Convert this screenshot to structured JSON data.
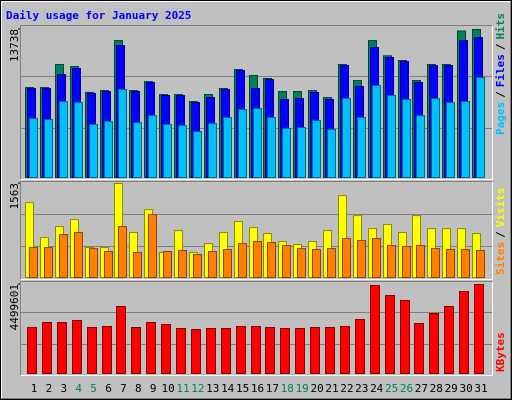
{
  "title": "Daily usage for January 2025",
  "legend_separator": "/",
  "chart_data": [
    {
      "type": "bar",
      "series": [
        {
          "name": "Hits",
          "color": "#00805c",
          "values": [
            8350,
            8350,
            10490,
            10300,
            7900,
            8070,
            12710,
            8070,
            8900,
            7700,
            7700,
            7050,
            7700,
            8260,
            10020,
            9470,
            9190,
            7980,
            7980,
            8070,
            7420,
            10490,
            9000,
            12710,
            11300,
            10860,
            9000,
            10490,
            10490,
            13600,
            13738
          ]
        },
        {
          "name": "Files",
          "color": "#0000ff",
          "values": [
            8260,
            8260,
            9560,
            10120,
            7800,
            7980,
            12250,
            7980,
            8820,
            7610,
            7610,
            6960,
            7420,
            8170,
            9930,
            8260,
            9090,
            7240,
            7330,
            7890,
            7240,
            10390,
            8450,
            12060,
            11140,
            10760,
            8820,
            10390,
            10390,
            12710,
            12990
          ]
        },
        {
          "name": "Pages",
          "color": "#00c0ff",
          "values": [
            5480,
            5380,
            7050,
            6960,
            4920,
            5200,
            8170,
            5100,
            5750,
            4920,
            4830,
            4270,
            5010,
            5570,
            6310,
            6400,
            5570,
            4550,
            4640,
            5290,
            4450,
            7330,
            5570,
            8540,
            7610,
            7240,
            5750,
            7330,
            6960,
            7050,
            9280
          ]
        }
      ],
      "ylim": [
        0,
        13738
      ],
      "yticks": [
        13738
      ]
    },
    {
      "type": "bar",
      "series": [
        {
          "name": "Visits",
          "color": "#ffff00",
          "values": [
            1245,
            664,
            847,
            963,
            498,
            498,
            1563,
            747,
            1129,
            415,
            780,
            415,
            564,
            747,
            930,
            830,
            730,
            598,
            548,
            598,
            780,
            1361,
            1029,
            813,
            880,
            747,
            1029,
            813,
            813,
            813,
            730
          ]
        },
        {
          "name": "Sites",
          "color": "#ff8000",
          "values": [
            498,
            498,
            714,
            747,
            480,
            432,
            847,
            415,
            1046,
            432,
            448,
            382,
            432,
            465,
            564,
            598,
            581,
            531,
            481,
            465,
            481,
            647,
            614,
            647,
            531,
            515,
            531,
            481,
            465,
            465,
            448
          ]
        }
      ],
      "ylim": [
        0,
        1563
      ],
      "yticks": [
        1563
      ]
    },
    {
      "type": "bar",
      "series": [
        {
          "name": "KBytes",
          "color": "#ff0000",
          "values": [
            2325600,
            2578400,
            2578400,
            2679500,
            2325600,
            2376200,
            3387300,
            2325600,
            2578400,
            2477300,
            2275100,
            2224500,
            2275100,
            2275100,
            2376200,
            2376200,
            2325600,
            2275100,
            2275100,
            2325600,
            2325600,
            2376200,
            2730100,
            4449000,
            3943400,
            3690700,
            2527900,
            3033400,
            3387300,
            4145700,
            4499601
          ]
        }
      ],
      "ylim": [
        0,
        4499601
      ],
      "yticks": [
        4499601
      ],
      "categories": [
        "1",
        "2",
        "3",
        "4",
        "5",
        "6",
        "7",
        "8",
        "9",
        "10",
        "11",
        "12",
        "13",
        "14",
        "15",
        "16",
        "17",
        "18",
        "19",
        "20",
        "21",
        "22",
        "23",
        "24",
        "25",
        "26",
        "27",
        "28",
        "29",
        "30",
        "31"
      ],
      "category_colors": [
        "#000000",
        "#000000",
        "#000000",
        "#00805c",
        "#00805c",
        "#000000",
        "#000000",
        "#000000",
        "#000000",
        "#000000",
        "#00805c",
        "#00805c",
        "#000000",
        "#000000",
        "#000000",
        "#000000",
        "#000000",
        "#00805c",
        "#00805c",
        "#000000",
        "#000000",
        "#000000",
        "#000000",
        "#000000",
        "#00805c",
        "#00805c",
        "#000000",
        "#000000",
        "#000000",
        "#000000",
        "#000000"
      ]
    }
  ]
}
